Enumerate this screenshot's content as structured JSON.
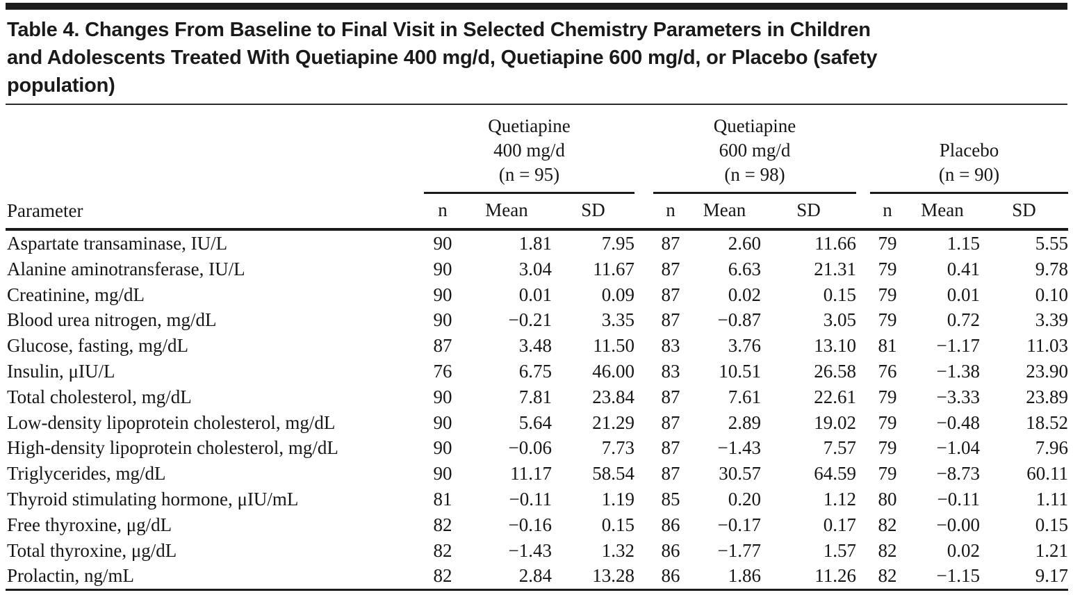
{
  "title_lines": [
    "Table 4. Changes From Baseline to Final Visit in Selected Chemistry Parameters in Children",
    "and Adolescents Treated With Quetiapine 400 mg/d, Quetiapine 600 mg/d, or Placebo (safety",
    "population)"
  ],
  "table": {
    "param_header": "Parameter",
    "groups": [
      {
        "lines": [
          "Quetiapine",
          "400 mg/d",
          "(n = 95)"
        ]
      },
      {
        "lines": [
          "Quetiapine",
          "600 mg/d",
          "(n = 98)"
        ]
      },
      {
        "lines": [
          "Placebo",
          "(n = 90)"
        ]
      }
    ],
    "subheaders": [
      "n",
      "Mean",
      "SD"
    ],
    "rows": [
      [
        "Aspartate transaminase, IU/L",
        "90",
        "1.81",
        "7.95",
        "87",
        "2.60",
        "11.66",
        "79",
        "1.15",
        "5.55"
      ],
      [
        "Alanine aminotransferase, IU/L",
        "90",
        "3.04",
        "11.67",
        "87",
        "6.63",
        "21.31",
        "79",
        "0.41",
        "9.78"
      ],
      [
        "Creatinine, mg/dL",
        "90",
        "0.01",
        "0.09",
        "87",
        "0.02",
        "0.15",
        "79",
        "0.01",
        "0.10"
      ],
      [
        "Blood urea nitrogen, mg/dL",
        "90",
        "−0.21",
        "3.35",
        "87",
        "−0.87",
        "3.05",
        "79",
        "0.72",
        "3.39"
      ],
      [
        "Glucose, fasting, mg/dL",
        "87",
        "3.48",
        "11.50",
        "83",
        "3.76",
        "13.10",
        "81",
        "−1.17",
        "11.03"
      ],
      [
        "Insulin, μIU/L",
        "76",
        "6.75",
        "46.00",
        "83",
        "10.51",
        "26.58",
        "76",
        "−1.38",
        "23.90"
      ],
      [
        "Total cholesterol, mg/dL",
        "90",
        "7.81",
        "23.84",
        "87",
        "7.61",
        "22.61",
        "79",
        "−3.33",
        "23.89"
      ],
      [
        "Low-density lipoprotein cholesterol, mg/dL",
        "90",
        "5.64",
        "21.29",
        "87",
        "2.89",
        "19.02",
        "79",
        "−0.48",
        "18.52"
      ],
      [
        "High-density lipoprotein cholesterol, mg/dL",
        "90",
        "−0.06",
        "7.73",
        "87",
        "−1.43",
        "7.57",
        "79",
        "−1.04",
        "7.96"
      ],
      [
        "Triglycerides, mg/dL",
        "90",
        "11.17",
        "58.54",
        "87",
        "30.57",
        "64.59",
        "79",
        "−8.73",
        "60.11"
      ],
      [
        "Thyroid stimulating hormone, μIU/mL",
        "81",
        "−0.11",
        "1.19",
        "85",
        "0.20",
        "1.12",
        "80",
        "−0.11",
        "1.11"
      ],
      [
        "Free thyroxine, μg/dL",
        "82",
        "−0.16",
        "0.15",
        "86",
        "−0.17",
        "0.17",
        "82",
        "−0.00",
        "0.15"
      ],
      [
        "Total thyroxine, μg/dL",
        "82",
        "−1.43",
        "1.32",
        "86",
        "−1.77",
        "1.57",
        "82",
        "0.02",
        "1.21"
      ],
      [
        "Prolactin, ng/mL",
        "82",
        "2.84",
        "13.28",
        "86",
        "1.86",
        "11.26",
        "82",
        "−1.15",
        "9.17"
      ]
    ]
  }
}
